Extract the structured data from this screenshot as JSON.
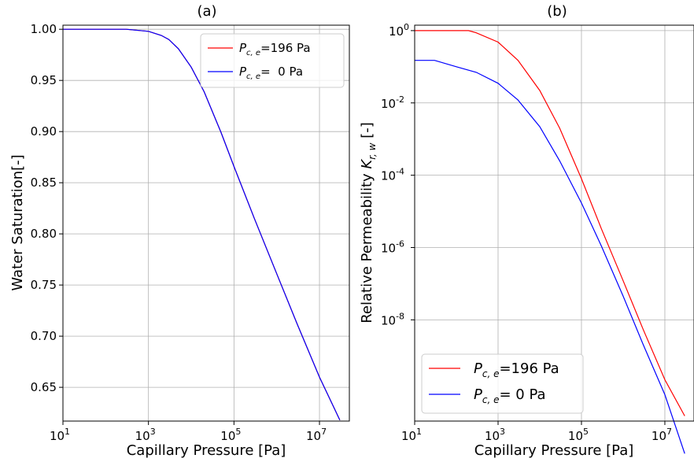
{
  "chart_data": [
    {
      "type": "line",
      "title": "(a)",
      "xlabel": "Capillary Pressure [Pa]",
      "ylabel": "Water Saturation[-]",
      "xscale": "log",
      "xlim": [
        10,
        50000000
      ],
      "ylim": [
        0.617,
        1.004
      ],
      "xticks": [
        10,
        1000,
        100000,
        10000000
      ],
      "xtick_labels": [
        {
          "base": "10",
          "exp": "1"
        },
        {
          "base": "10",
          "exp": "3"
        },
        {
          "base": "10",
          "exp": "5"
        },
        {
          "base": "10",
          "exp": "7"
        }
      ],
      "yticks": [
        0.65,
        0.7,
        0.75,
        0.8,
        0.85,
        0.9,
        0.95,
        1.0
      ],
      "ytick_labels": [
        "0.65",
        "0.70",
        "0.75",
        "0.80",
        "0.85",
        "0.90",
        "0.95",
        "1.00"
      ],
      "grid": true,
      "legend_position": "upper right",
      "series": [
        {
          "name": {
            "sym": "P",
            "sub": "c, e",
            "rest": "=196 Pa"
          },
          "color": "#ff0000",
          "x": [
            10,
            100,
            300,
            1000,
            2000,
            3000,
            5000,
            10000,
            20000,
            50000,
            100000,
            300000,
            1000000,
            3000000,
            10000000,
            30000000
          ],
          "y": [
            1.0,
            1.0,
            1.0,
            0.998,
            0.994,
            0.99,
            0.981,
            0.963,
            0.939,
            0.899,
            0.866,
            0.815,
            0.761,
            0.712,
            0.66,
            0.618
          ]
        },
        {
          "name": {
            "sym": "P",
            "sub": "c, e",
            "rest": "=  0 Pa"
          },
          "color": "#0000ff",
          "x": [
            10,
            100,
            300,
            1000,
            2000,
            3000,
            5000,
            10000,
            20000,
            50000,
            100000,
            300000,
            1000000,
            3000000,
            10000000,
            30000000
          ],
          "y": [
            1.0,
            1.0,
            1.0,
            0.998,
            0.994,
            0.99,
            0.981,
            0.963,
            0.939,
            0.899,
            0.866,
            0.815,
            0.761,
            0.712,
            0.66,
            0.618
          ]
        }
      ]
    },
    {
      "type": "line",
      "title": "(b)",
      "xlabel": "Capillary Pressure [Pa]",
      "ylabel": {
        "text": "Relative Permeability ",
        "sym": "K",
        "sub": "r, w",
        "rest": " [-]"
      },
      "xscale": "log",
      "yscale": "log",
      "xlim": [
        10,
        50000000
      ],
      "ylim_log10": [
        -10.8,
        0.15
      ],
      "xticks": [
        10,
        1000,
        100000,
        10000000
      ],
      "xtick_labels": [
        {
          "base": "10",
          "exp": "1"
        },
        {
          "base": "10",
          "exp": "3"
        },
        {
          "base": "10",
          "exp": "5"
        },
        {
          "base": "10",
          "exp": "7"
        }
      ],
      "yticks_log10": [
        0,
        -2,
        -4,
        -6,
        -8
      ],
      "ytick_labels": [
        {
          "base": "10",
          "exp": "0"
        },
        {
          "base": "10",
          "exp": "-2"
        },
        {
          "base": "10",
          "exp": "-4"
        },
        {
          "base": "10",
          "exp": "-6"
        },
        {
          "base": "10",
          "exp": "-8"
        }
      ],
      "grid": true,
      "legend_position": "lower left",
      "series": [
        {
          "name": {
            "sym": "P",
            "sub": "c, e",
            "rest": "=196 Pa"
          },
          "color": "#ff0000",
          "x": [
            10,
            100,
            196,
            300,
            1000,
            3000,
            10000,
            30000,
            100000,
            300000,
            1000000,
            3000000,
            10000000,
            30000000
          ],
          "y": [
            1,
            1,
            1,
            0.87,
            0.48,
            0.15,
            0.022,
            0.002,
            8e-05,
            3.3e-06,
            1.2e-07,
            5.5e-09,
            2.2e-10,
            2.2e-11
          ]
        },
        {
          "name": {
            "sym": "P",
            "sub": "c, e",
            "rest": "= 0 Pa"
          },
          "color": "#0000ff",
          "x": [
            10,
            30,
            100,
            300,
            1000,
            3000,
            10000,
            30000,
            100000,
            300000,
            1000000,
            3000000,
            10000000,
            30000000
          ],
          "y": [
            0.15,
            0.15,
            0.1,
            0.07,
            0.035,
            0.012,
            0.0022,
            0.00025,
            1.7e-05,
            1.1e-06,
            4.5e-08,
            2.1e-09,
            8.5e-11,
            2e-12
          ]
        }
      ]
    }
  ]
}
